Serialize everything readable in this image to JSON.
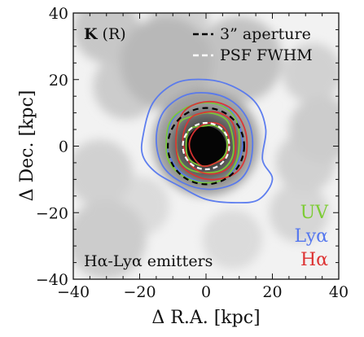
{
  "chart_data": {
    "type": "image-contour",
    "title": "K (R)",
    "title_bold": "K",
    "title_rest": " (R)",
    "xlabel": "Δ R.A. [kpc]",
    "ylabel": "Δ Dec. [kpc]",
    "xlim": [
      -40,
      40
    ],
    "ylim": [
      -40,
      40
    ],
    "xticks": [
      -40,
      -20,
      0,
      20,
      40
    ],
    "yticks": [
      -40,
      -20,
      0,
      20,
      40
    ],
    "xtick_labels": [
      "−40",
      "−20",
      "0",
      "20",
      "40"
    ],
    "ytick_labels": [
      "−40",
      "−20",
      "0",
      "20",
      "40"
    ],
    "annotation": "Hα-Lyα emitters",
    "legend": {
      "position": "top-right",
      "entries": [
        {
          "label": "3” aperture",
          "color": "#000000",
          "style": "dashed"
        },
        {
          "label": "PSF FWHM",
          "color": "#ffffff",
          "style": "dashed"
        }
      ]
    },
    "series_labels": [
      {
        "name": "UV",
        "color": "#7ccc33"
      },
      {
        "name": "Lyα",
        "color": "#5577ee"
      },
      {
        "name": "Hα",
        "color": "#dd3333"
      }
    ],
    "aperture_circle": {
      "center": [
        0,
        0
      ],
      "radius": 11.5,
      "color": "#000000"
    },
    "psf_circle": {
      "center": [
        0,
        0
      ],
      "radius": 7,
      "color": "#ffffff"
    },
    "contours": [
      {
        "series": "Lyα",
        "color": "#5577ee",
        "points": [
          [
            -19,
            3
          ],
          [
            -16,
            13
          ],
          [
            -9,
            19
          ],
          [
            0,
            20
          ],
          [
            8,
            18
          ],
          [
            15,
            13
          ],
          [
            18,
            5
          ],
          [
            17,
            -4
          ],
          [
            20,
            -10
          ],
          [
            16,
            -16
          ],
          [
            9,
            -17
          ],
          [
            0,
            -16
          ],
          [
            -8,
            -12
          ],
          [
            -15,
            -8
          ],
          [
            -19,
            -3
          ]
        ]
      },
      {
        "series": "Lyα",
        "color": "#5577ee",
        "points": [
          [
            -15,
            2
          ],
          [
            -13,
            10
          ],
          [
            -7,
            15
          ],
          [
            0,
            16
          ],
          [
            7,
            14
          ],
          [
            12,
            9
          ],
          [
            14,
            2
          ],
          [
            13,
            -6
          ],
          [
            9,
            -11
          ],
          [
            1,
            -13
          ],
          [
            -7,
            -11
          ],
          [
            -13,
            -6
          ]
        ]
      },
      {
        "series": "Lyα",
        "color": "#5577ee",
        "points": [
          [
            -12,
            1
          ],
          [
            -10,
            8
          ],
          [
            -5,
            12
          ],
          [
            1,
            13
          ],
          [
            7,
            11
          ],
          [
            10,
            6
          ],
          [
            11,
            0
          ],
          [
            9,
            -6
          ],
          [
            5,
            -10
          ],
          [
            0,
            -11
          ],
          [
            -6,
            -9
          ],
          [
            -10,
            -5
          ]
        ]
      },
      {
        "series": "UV",
        "color": "#7ccc33",
        "points": [
          [
            -12,
            0
          ],
          [
            -11,
            7
          ],
          [
            -7,
            11
          ],
          [
            -1,
            13
          ],
          [
            5,
            12
          ],
          [
            9,
            8
          ],
          [
            10,
            2
          ],
          [
            9,
            -5
          ],
          [
            5,
            -10
          ],
          [
            -1,
            -11
          ],
          [
            -7,
            -9
          ],
          [
            -11,
            -5
          ]
        ]
      },
      {
        "series": "UV",
        "color": "#7ccc33",
        "points": [
          [
            -9,
            1
          ],
          [
            -8,
            7
          ],
          [
            -4,
            9
          ],
          [
            1,
            10
          ],
          [
            6,
            8
          ],
          [
            8,
            3
          ],
          [
            8,
            -3
          ],
          [
            5,
            -7
          ],
          [
            0,
            -8
          ],
          [
            -5,
            -7
          ],
          [
            -8,
            -4
          ]
        ]
      },
      {
        "series": "UV",
        "color": "#7ccc33",
        "points": [
          [
            -6,
            0
          ],
          [
            -5,
            5
          ],
          [
            -1,
            6
          ],
          [
            3,
            6
          ],
          [
            6,
            3
          ],
          [
            6,
            -2
          ],
          [
            3,
            -5
          ],
          [
            -1,
            -6
          ],
          [
            -5,
            -4
          ]
        ]
      },
      {
        "series": "Hα",
        "color": "#dd3333",
        "points": [
          [
            -9,
            3
          ],
          [
            -7,
            10
          ],
          [
            -2,
            13
          ],
          [
            4,
            13
          ],
          [
            9,
            10
          ],
          [
            12,
            4
          ],
          [
            12,
            -3
          ],
          [
            9,
            -8
          ],
          [
            3,
            -10
          ],
          [
            -3,
            -9
          ],
          [
            -8,
            -5
          ]
        ]
      },
      {
        "series": "Hα",
        "color": "#dd3333",
        "points": [
          [
            -7,
            2
          ],
          [
            -5,
            8
          ],
          [
            -1,
            10
          ],
          [
            4,
            10
          ],
          [
            8,
            7
          ],
          [
            9,
            1
          ],
          [
            8,
            -5
          ],
          [
            4,
            -8
          ],
          [
            -1,
            -8
          ],
          [
            -5,
            -5
          ]
        ]
      },
      {
        "series": "Hα",
        "color": "#dd3333",
        "points": [
          [
            -5,
            1
          ],
          [
            -3,
            5
          ],
          [
            1,
            7
          ],
          [
            5,
            6
          ],
          [
            7,
            2
          ],
          [
            6,
            -3
          ],
          [
            3,
            -5
          ],
          [
            -1,
            -6
          ],
          [
            -4,
            -3
          ]
        ]
      }
    ],
    "image_blobs": [
      {
        "x": 0,
        "y": 0,
        "r": 6.5,
        "g": 0.0
      },
      {
        "x": 0,
        "y": 0,
        "r": 11,
        "g": 0.38
      },
      {
        "x": 0,
        "y": 1,
        "r": 16,
        "g": 0.62
      },
      {
        "x": -12,
        "y": 25,
        "r": 14,
        "g": 0.72
      },
      {
        "x": 10,
        "y": 26,
        "r": 13,
        "g": 0.76
      },
      {
        "x": -24,
        "y": 18,
        "r": 10,
        "g": 0.8
      },
      {
        "x": -30,
        "y": 35,
        "r": 10,
        "g": 0.78
      },
      {
        "x": -8,
        "y": 38,
        "r": 9,
        "g": 0.82
      },
      {
        "x": 35,
        "y": 5,
        "r": 10,
        "g": 0.8
      },
      {
        "x": 30,
        "y": -5,
        "r": 9,
        "g": 0.82
      },
      {
        "x": -32,
        "y": -8,
        "r": 10,
        "g": 0.82
      },
      {
        "x": -30,
        "y": -28,
        "r": 12,
        "g": 0.8
      },
      {
        "x": 28,
        "y": -20,
        "r": 9,
        "g": 0.84
      },
      {
        "x": 32,
        "y": 22,
        "r": 9,
        "g": 0.82
      },
      {
        "x": 8,
        "y": -28,
        "r": 9,
        "g": 0.86
      },
      {
        "x": -20,
        "y": -18,
        "r": 9,
        "g": 0.86
      }
    ]
  }
}
